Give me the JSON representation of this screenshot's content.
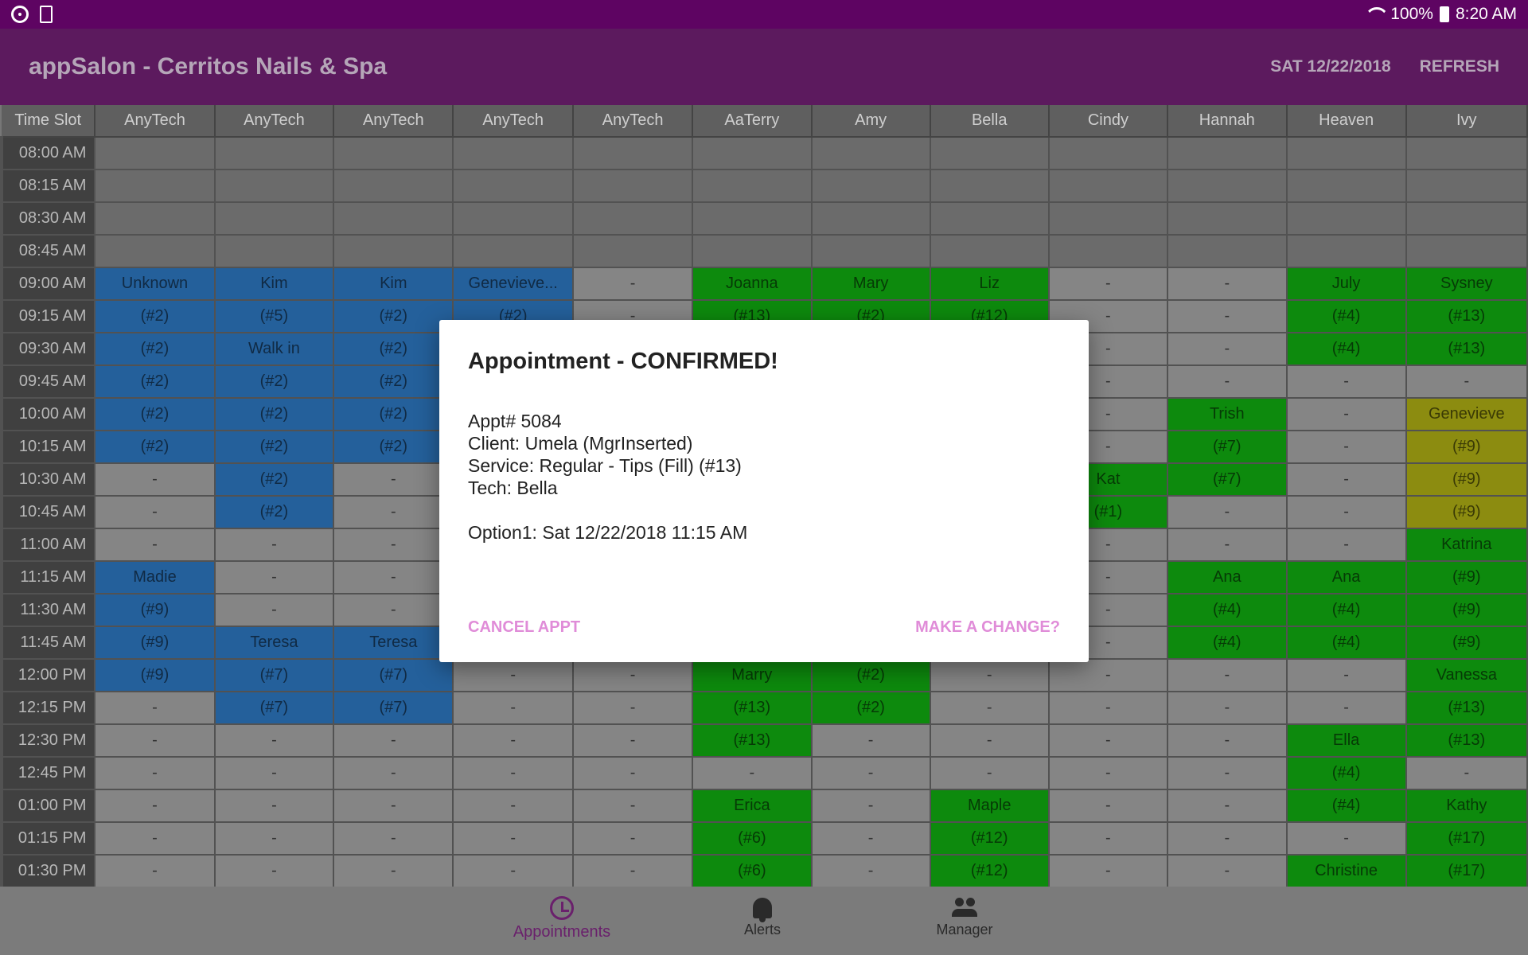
{
  "status_bar": {
    "battery_pct": "100%",
    "time": "8:20 AM"
  },
  "app_bar": {
    "title": "appSalon - Cerritos Nails & Spa",
    "date": "SAT 12/22/2018",
    "refresh_label": "REFRESH"
  },
  "schedule": {
    "columns": [
      "Time Slot",
      "AnyTech",
      "AnyTech",
      "AnyTech",
      "AnyTech",
      "AnyTech",
      "AaTerry",
      "Amy",
      "Bella",
      "Cindy",
      "Hannah",
      "Heaven",
      "Ivy"
    ],
    "rows": [
      {
        "time": "08:00 AM",
        "cells": [
          [
            "",
            "e"
          ],
          [
            "",
            "e"
          ],
          [
            "",
            "e"
          ],
          [
            "",
            "e"
          ],
          [
            "",
            "e"
          ],
          [
            "",
            "e"
          ],
          [
            "",
            "e"
          ],
          [
            "",
            "e"
          ],
          [
            "",
            "e"
          ],
          [
            "",
            "e"
          ],
          [
            "",
            "e"
          ],
          [
            "",
            "e"
          ]
        ]
      },
      {
        "time": "08:15 AM",
        "cells": [
          [
            "",
            "e"
          ],
          [
            "",
            "e"
          ],
          [
            "",
            "e"
          ],
          [
            "",
            "e"
          ],
          [
            "",
            "e"
          ],
          [
            "",
            "e"
          ],
          [
            "",
            "e"
          ],
          [
            "",
            "e"
          ],
          [
            "",
            "e"
          ],
          [
            "",
            "e"
          ],
          [
            "",
            "e"
          ],
          [
            "",
            "e"
          ]
        ]
      },
      {
        "time": "08:30 AM",
        "cells": [
          [
            "",
            "e"
          ],
          [
            "",
            "e"
          ],
          [
            "",
            "e"
          ],
          [
            "",
            "e"
          ],
          [
            "",
            "e"
          ],
          [
            "",
            "e"
          ],
          [
            "",
            "e"
          ],
          [
            "",
            "e"
          ],
          [
            "",
            "e"
          ],
          [
            "",
            "e"
          ],
          [
            "",
            "e"
          ],
          [
            "",
            "e"
          ]
        ]
      },
      {
        "time": "08:45 AM",
        "cells": [
          [
            "",
            "e"
          ],
          [
            "",
            "e"
          ],
          [
            "",
            "e"
          ],
          [
            "",
            "e"
          ],
          [
            "",
            "e"
          ],
          [
            "",
            "e"
          ],
          [
            "",
            "e"
          ],
          [
            "",
            "e"
          ],
          [
            "",
            "e"
          ],
          [
            "",
            "e"
          ],
          [
            "",
            "e"
          ],
          [
            "",
            "e"
          ]
        ]
      },
      {
        "time": "09:00 AM",
        "cells": [
          [
            "Unknown",
            "b"
          ],
          [
            "Kim",
            "b"
          ],
          [
            "Kim",
            "b"
          ],
          [
            "Genevieve...",
            "b"
          ],
          [
            "-",
            "d"
          ],
          [
            "Joanna",
            "g"
          ],
          [
            "Mary",
            "g"
          ],
          [
            "Liz",
            "g"
          ],
          [
            "-",
            "d"
          ],
          [
            "-",
            "d"
          ],
          [
            "July",
            "g"
          ],
          [
            "Sysney",
            "g"
          ]
        ]
      },
      {
        "time": "09:15 AM",
        "cells": [
          [
            "(#2)",
            "b"
          ],
          [
            "(#5)",
            "b"
          ],
          [
            "(#2)",
            "b"
          ],
          [
            "(#2)",
            "b"
          ],
          [
            "-",
            "d"
          ],
          [
            "(#13)",
            "g"
          ],
          [
            "(#2)",
            "g"
          ],
          [
            "(#12)",
            "g"
          ],
          [
            "-",
            "d"
          ],
          [
            "-",
            "d"
          ],
          [
            "(#4)",
            "g"
          ],
          [
            "(#13)",
            "g"
          ]
        ]
      },
      {
        "time": "09:30 AM",
        "cells": [
          [
            "(#2)",
            "b"
          ],
          [
            "Walk in",
            "b"
          ],
          [
            "(#2)",
            "b"
          ],
          [
            "",
            "b"
          ],
          [
            "",
            "d"
          ],
          [
            "",
            "g"
          ],
          [
            "",
            "g"
          ],
          [
            "",
            "g"
          ],
          [
            "-",
            "d"
          ],
          [
            "-",
            "d"
          ],
          [
            "(#4)",
            "g"
          ],
          [
            "(#13)",
            "g"
          ]
        ]
      },
      {
        "time": "09:45 AM",
        "cells": [
          [
            "(#2)",
            "b"
          ],
          [
            "(#2)",
            "b"
          ],
          [
            "(#2)",
            "b"
          ],
          [
            "",
            "b"
          ],
          [
            "",
            "d"
          ],
          [
            "",
            "g"
          ],
          [
            "",
            "g"
          ],
          [
            "",
            "g"
          ],
          [
            "-",
            "d"
          ],
          [
            "-",
            "d"
          ],
          [
            "-",
            "d"
          ],
          [
            "-",
            "d"
          ]
        ]
      },
      {
        "time": "10:00 AM",
        "cells": [
          [
            "(#2)",
            "b"
          ],
          [
            "(#2)",
            "b"
          ],
          [
            "(#2)",
            "b"
          ],
          [
            "",
            "b"
          ],
          [
            "",
            "d"
          ],
          [
            "",
            "g"
          ],
          [
            "",
            "g"
          ],
          [
            "",
            "g"
          ],
          [
            "-",
            "d"
          ],
          [
            "Trish",
            "g"
          ],
          [
            "-",
            "d"
          ],
          [
            "Genevieve",
            "y"
          ]
        ]
      },
      {
        "time": "10:15 AM",
        "cells": [
          [
            "(#2)",
            "b"
          ],
          [
            "(#2)",
            "b"
          ],
          [
            "(#2)",
            "b"
          ],
          [
            "",
            "b"
          ],
          [
            "",
            "d"
          ],
          [
            "",
            "g"
          ],
          [
            "",
            "g"
          ],
          [
            "",
            "g"
          ],
          [
            "-",
            "d"
          ],
          [
            "(#7)",
            "g"
          ],
          [
            "-",
            "d"
          ],
          [
            "(#9)",
            "y"
          ]
        ]
      },
      {
        "time": "10:30 AM",
        "cells": [
          [
            "-",
            "d"
          ],
          [
            "(#2)",
            "b"
          ],
          [
            "-",
            "d"
          ],
          [
            "",
            "d"
          ],
          [
            "",
            "d"
          ],
          [
            "",
            "g"
          ],
          [
            "",
            "g"
          ],
          [
            "",
            "g"
          ],
          [
            "Kat",
            "g"
          ],
          [
            "(#7)",
            "g"
          ],
          [
            "-",
            "d"
          ],
          [
            "(#9)",
            "y"
          ]
        ]
      },
      {
        "time": "10:45 AM",
        "cells": [
          [
            "-",
            "d"
          ],
          [
            "(#2)",
            "b"
          ],
          [
            "-",
            "d"
          ],
          [
            "",
            "d"
          ],
          [
            "",
            "d"
          ],
          [
            "",
            "g"
          ],
          [
            "",
            "g"
          ],
          [
            "",
            "g"
          ],
          [
            "(#1)",
            "g"
          ],
          [
            "-",
            "d"
          ],
          [
            "-",
            "d"
          ],
          [
            "(#9)",
            "y"
          ]
        ]
      },
      {
        "time": "11:00 AM",
        "cells": [
          [
            "-",
            "d"
          ],
          [
            "-",
            "d"
          ],
          [
            "-",
            "d"
          ],
          [
            "",
            "d"
          ],
          [
            "",
            "d"
          ],
          [
            "",
            "g"
          ],
          [
            "",
            "g"
          ],
          [
            "",
            "g"
          ],
          [
            "-",
            "d"
          ],
          [
            "-",
            "d"
          ],
          [
            "-",
            "d"
          ],
          [
            "Katrina",
            "g"
          ]
        ]
      },
      {
        "time": "11:15 AM",
        "cells": [
          [
            "Madie",
            "b"
          ],
          [
            "-",
            "d"
          ],
          [
            "-",
            "d"
          ],
          [
            "",
            "d"
          ],
          [
            "",
            "d"
          ],
          [
            "",
            "g"
          ],
          [
            "",
            "g"
          ],
          [
            "",
            "g"
          ],
          [
            "-",
            "d"
          ],
          [
            "Ana",
            "g"
          ],
          [
            "Ana",
            "g"
          ],
          [
            "(#9)",
            "g"
          ]
        ]
      },
      {
        "time": "11:30 AM",
        "cells": [
          [
            "(#9)",
            "b"
          ],
          [
            "-",
            "d"
          ],
          [
            "-",
            "d"
          ],
          [
            "",
            "d"
          ],
          [
            "",
            "d"
          ],
          [
            "",
            "g"
          ],
          [
            "",
            "g"
          ],
          [
            "",
            "g"
          ],
          [
            "-",
            "d"
          ],
          [
            "(#4)",
            "g"
          ],
          [
            "(#4)",
            "g"
          ],
          [
            "(#9)",
            "g"
          ]
        ]
      },
      {
        "time": "11:45 AM",
        "cells": [
          [
            "(#9)",
            "b"
          ],
          [
            "Teresa",
            "b"
          ],
          [
            "Teresa",
            "b"
          ],
          [
            "",
            "d"
          ],
          [
            "",
            "d"
          ],
          [
            "",
            "g"
          ],
          [
            "",
            "g"
          ],
          [
            "",
            "g"
          ],
          [
            "-",
            "d"
          ],
          [
            "(#4)",
            "g"
          ],
          [
            "(#4)",
            "g"
          ],
          [
            "(#9)",
            "g"
          ]
        ]
      },
      {
        "time": "12:00 PM",
        "cells": [
          [
            "(#9)",
            "b"
          ],
          [
            "(#7)",
            "b"
          ],
          [
            "(#7)",
            "b"
          ],
          [
            "-",
            "d"
          ],
          [
            "-",
            "d"
          ],
          [
            "Marry",
            "g"
          ],
          [
            "(#2)",
            "g"
          ],
          [
            "-",
            "d"
          ],
          [
            "-",
            "d"
          ],
          [
            "-",
            "d"
          ],
          [
            "-",
            "d"
          ],
          [
            "Vanessa",
            "g"
          ]
        ]
      },
      {
        "time": "12:15 PM",
        "cells": [
          [
            "-",
            "d"
          ],
          [
            "(#7)",
            "b"
          ],
          [
            "(#7)",
            "b"
          ],
          [
            "-",
            "d"
          ],
          [
            "-",
            "d"
          ],
          [
            "(#13)",
            "g"
          ],
          [
            "(#2)",
            "g"
          ],
          [
            "-",
            "d"
          ],
          [
            "-",
            "d"
          ],
          [
            "-",
            "d"
          ],
          [
            "-",
            "d"
          ],
          [
            "(#13)",
            "g"
          ]
        ]
      },
      {
        "time": "12:30 PM",
        "cells": [
          [
            "-",
            "d"
          ],
          [
            "-",
            "d"
          ],
          [
            "-",
            "d"
          ],
          [
            "-",
            "d"
          ],
          [
            "-",
            "d"
          ],
          [
            "(#13)",
            "g"
          ],
          [
            "-",
            "d"
          ],
          [
            "-",
            "d"
          ],
          [
            "-",
            "d"
          ],
          [
            "-",
            "d"
          ],
          [
            "Ella",
            "g"
          ],
          [
            "(#13)",
            "g"
          ]
        ]
      },
      {
        "time": "12:45 PM",
        "cells": [
          [
            "-",
            "d"
          ],
          [
            "-",
            "d"
          ],
          [
            "-",
            "d"
          ],
          [
            "-",
            "d"
          ],
          [
            "-",
            "d"
          ],
          [
            "-",
            "d"
          ],
          [
            "-",
            "d"
          ],
          [
            "-",
            "d"
          ],
          [
            "-",
            "d"
          ],
          [
            "-",
            "d"
          ],
          [
            "(#4)",
            "g"
          ],
          [
            "-",
            "d"
          ]
        ]
      },
      {
        "time": "01:00 PM",
        "cells": [
          [
            "-",
            "d"
          ],
          [
            "-",
            "d"
          ],
          [
            "-",
            "d"
          ],
          [
            "-",
            "d"
          ],
          [
            "-",
            "d"
          ],
          [
            "Erica",
            "g"
          ],
          [
            "-",
            "d"
          ],
          [
            "Maple",
            "g"
          ],
          [
            "-",
            "d"
          ],
          [
            "-",
            "d"
          ],
          [
            "(#4)",
            "g"
          ],
          [
            "Kathy",
            "g"
          ]
        ]
      },
      {
        "time": "01:15 PM",
        "cells": [
          [
            "-",
            "d"
          ],
          [
            "-",
            "d"
          ],
          [
            "-",
            "d"
          ],
          [
            "-",
            "d"
          ],
          [
            "-",
            "d"
          ],
          [
            "(#6)",
            "g"
          ],
          [
            "-",
            "d"
          ],
          [
            "(#12)",
            "g"
          ],
          [
            "-",
            "d"
          ],
          [
            "-",
            "d"
          ],
          [
            "-",
            "d"
          ],
          [
            "(#17)",
            "g"
          ]
        ]
      },
      {
        "time": "01:30 PM",
        "cells": [
          [
            "-",
            "d"
          ],
          [
            "-",
            "d"
          ],
          [
            "-",
            "d"
          ],
          [
            "-",
            "d"
          ],
          [
            "-",
            "d"
          ],
          [
            "(#6)",
            "g"
          ],
          [
            "-",
            "d"
          ],
          [
            "(#12)",
            "g"
          ],
          [
            "-",
            "d"
          ],
          [
            "-",
            "d"
          ],
          [
            "Christine",
            "g"
          ],
          [
            "(#17)",
            "g"
          ]
        ]
      }
    ]
  },
  "dialog": {
    "title": "Appointment - CONFIRMED!",
    "appt": "Appt# 5084",
    "client": "Client: Umela (MgrInserted)",
    "service": "Service: Regular - Tips (Fill) (#13)",
    "tech": "Tech: Bella",
    "option1": "Option1: Sat 12/22/2018 11:15 AM",
    "cancel_label": "CANCEL APPT",
    "change_label": "MAKE A CHANGE?"
  },
  "bottom_nav": {
    "appointments": "Appointments",
    "alerts": "Alerts",
    "manager": "Manager"
  },
  "colors": {
    "status_bar": "#5e0462",
    "app_bar": "#5c1a5e",
    "booked_blue": "#24609b",
    "booked_green": "#0d8a0d",
    "booked_yellow": "#8c8c10",
    "accent": "#e08cd8"
  }
}
